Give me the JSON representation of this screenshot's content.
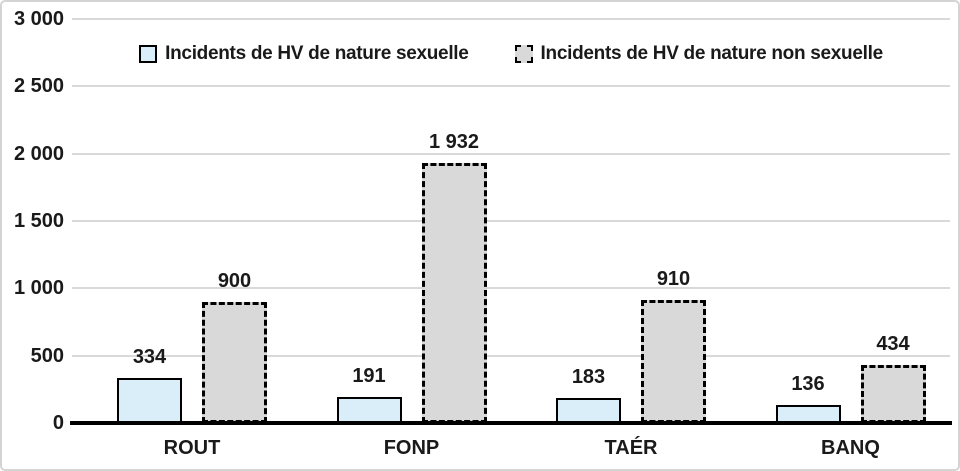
{
  "chart_data": {
    "type": "bar",
    "title": "",
    "xlabel": "",
    "ylabel": "",
    "categories": [
      "ROUT",
      "FONP",
      "TAÉR",
      "BANQ"
    ],
    "series": [
      {
        "name": "Incidents de HV de nature sexuelle",
        "values": [
          334,
          191,
          183,
          136
        ],
        "value_labels": [
          "334",
          "191",
          "183",
          "136"
        ],
        "fill": "#d9eef9",
        "border_style": "solid"
      },
      {
        "name": "Incidents de HV de nature non sexuelle",
        "values": [
          900,
          1932,
          910,
          434
        ],
        "value_labels": [
          "900",
          "1 932",
          "910",
          "434"
        ],
        "fill": "#d9d9d9",
        "border_style": "dashed"
      }
    ],
    "ylim": [
      0,
      3000
    ],
    "ytick_values": [
      0,
      500,
      1000,
      1500,
      2000,
      2500,
      3000
    ],
    "ytick_labels": [
      "0",
      "500",
      "1 000",
      "1 500",
      "2 000",
      "2 500",
      "3 000"
    ],
    "grid": true,
    "legend_position": "top-center"
  },
  "colors": {
    "background": "#ffffff",
    "frame_border": "#d4d4d4",
    "gridline": "#d9d9d9",
    "axis_line": "#000000",
    "bar_border": "#000000",
    "text": "#1a1a1a"
  }
}
